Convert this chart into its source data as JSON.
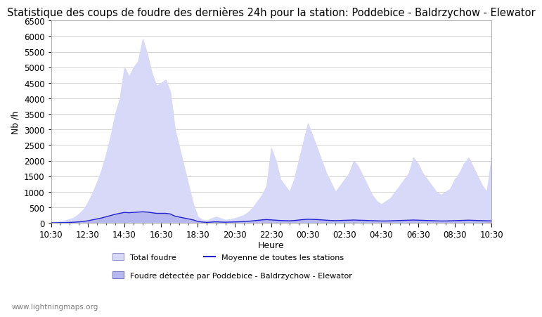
{
  "title": "Statistique des coups de foudre des dernières 24h pour la station: Poddebice - Baldrzychow - Elewator",
  "ylabel": "Nb /h",
  "xlabel": "Heure",
  "ylim": [
    0,
    6500
  ],
  "yticks": [
    0,
    500,
    1000,
    1500,
    2000,
    2500,
    3000,
    3500,
    4000,
    4500,
    5000,
    5500,
    6000,
    6500
  ],
  "xtick_labels": [
    "10:30",
    "12:30",
    "14:30",
    "16:30",
    "18:30",
    "20:30",
    "22:30",
    "00:30",
    "02:30",
    "04:30",
    "06:30",
    "08:30",
    "10:30"
  ],
  "watermark": "www.lightningmaps.org",
  "legend_row1_left_label": "Total foudre",
  "legend_row1_right_label": "Moyenne de toutes les stations",
  "legend_row2_label": "Foudre détectée par Poddebice - Baldrzychow - Elewator",
  "fill_color_total": "#d8d8f8",
  "fill_color_station": "#b8b8f0",
  "line_color_moyenne": "#2222cc",
  "title_fontsize": 10.5,
  "axis_fontsize": 9,
  "tick_fontsize": 8.5,
  "total_foudre": [
    30,
    40,
    60,
    80,
    120,
    180,
    280,
    420,
    650,
    950,
    1300,
    1700,
    2200,
    2800,
    3500,
    4000,
    5000,
    4700,
    5000,
    5200,
    5900,
    5400,
    4800,
    4400,
    4500,
    4600,
    4200,
    3000,
    2400,
    1800,
    1200,
    600,
    200,
    100,
    80,
    150,
    200,
    150,
    100,
    120,
    150,
    200,
    250,
    350,
    500,
    700,
    900,
    1200,
    2400,
    2000,
    1400,
    1200,
    1000,
    1400,
    2000,
    2600,
    3200,
    2800,
    2400,
    2000,
    1600,
    1300,
    1000,
    1200,
    1400,
    1600,
    2000,
    1800,
    1500,
    1200,
    900,
    700,
    600,
    700,
    800,
    1000,
    1200,
    1400,
    1600,
    2100,
    1900,
    1600,
    1400,
    1200,
    1000,
    900,
    1000,
    1100,
    1400,
    1600,
    1900,
    2100,
    1800,
    1500,
    1200,
    1000,
    2100
  ],
  "station_foudre": [
    5,
    8,
    10,
    12,
    18,
    25,
    35,
    50,
    70,
    100,
    130,
    160,
    200,
    240,
    280,
    310,
    340,
    330,
    340,
    350,
    360,
    350,
    330,
    310,
    310,
    310,
    290,
    220,
    190,
    160,
    130,
    100,
    50,
    30,
    20,
    30,
    40,
    30,
    25,
    30,
    35,
    40,
    45,
    55,
    70,
    85,
    100,
    110,
    100,
    90,
    80,
    75,
    70,
    80,
    95,
    110,
    120,
    115,
    110,
    100,
    90,
    80,
    75,
    80,
    85,
    90,
    95,
    90,
    85,
    80,
    75,
    70,
    65,
    65,
    70,
    75,
    80,
    85,
    90,
    95,
    90,
    85,
    80,
    75,
    70,
    65,
    65,
    70,
    75,
    80,
    85,
    90,
    85,
    80,
    75,
    70,
    70
  ],
  "moyenne": [
    5,
    8,
    10,
    12,
    18,
    25,
    35,
    50,
    70,
    100,
    130,
    160,
    200,
    240,
    280,
    310,
    340,
    330,
    340,
    350,
    360,
    350,
    330,
    310,
    310,
    310,
    290,
    220,
    190,
    160,
    130,
    100,
    50,
    30,
    20,
    30,
    40,
    30,
    25,
    30,
    35,
    40,
    45,
    55,
    70,
    85,
    100,
    110,
    100,
    90,
    80,
    75,
    70,
    80,
    95,
    110,
    120,
    115,
    110,
    100,
    90,
    80,
    75,
    80,
    85,
    90,
    95,
    90,
    85,
    80,
    75,
    70,
    65,
    65,
    70,
    75,
    80,
    85,
    90,
    95,
    90,
    85,
    80,
    75,
    70,
    65,
    65,
    70,
    75,
    80,
    85,
    90,
    85,
    80,
    75,
    70,
    70
  ]
}
